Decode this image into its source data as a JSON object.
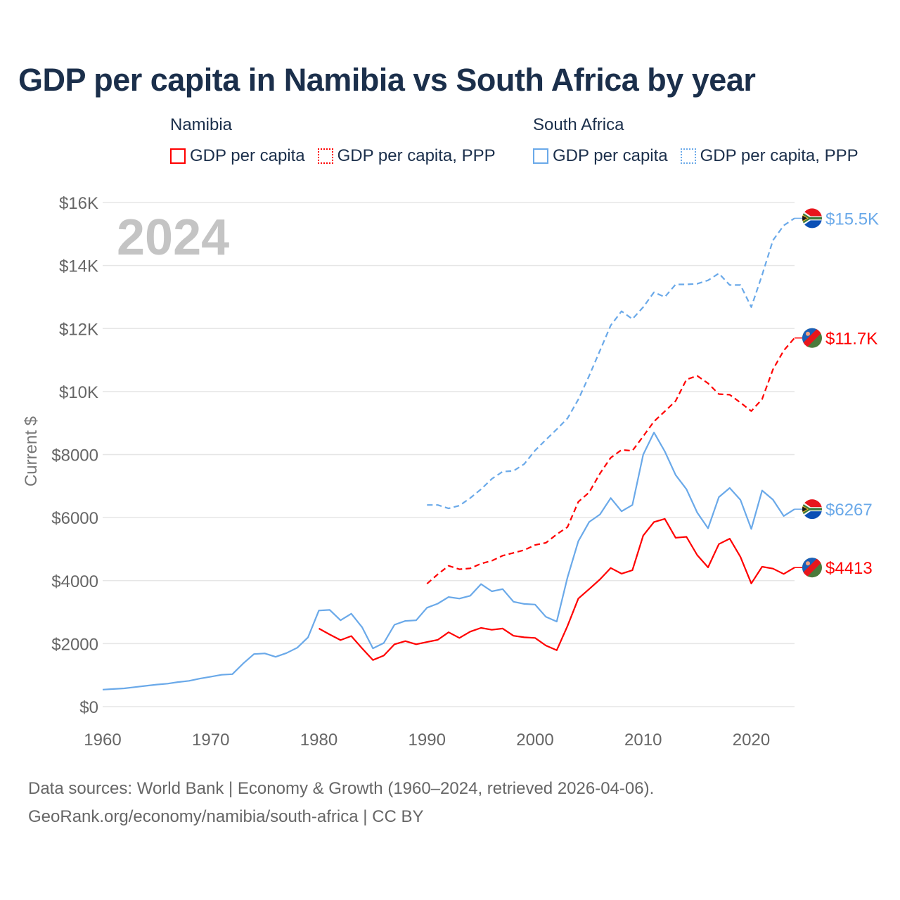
{
  "title": "GDP per capita in Namibia vs South Africa by year",
  "legend": {
    "groups": [
      {
        "country": "Namibia",
        "color": "#ff0000",
        "items": [
          "GDP per capita",
          "GDP per capita, PPP"
        ]
      },
      {
        "country": "South Africa",
        "color": "#6aa9e9",
        "items": [
          "GDP per capita",
          "GDP per capita, PPP"
        ]
      }
    ]
  },
  "year_label": "2024",
  "footer": {
    "line1": "Data sources: World Bank | Economy & Growth (1960–2024, retrieved 2026-04-06).",
    "line2": "GeoRank.org/economy/namibia/south-africa | CC BY"
  },
  "chart_data": {
    "type": "line",
    "title": "GDP per capita in Namibia vs South Africa by year",
    "xlabel": "",
    "ylabel": "Current $",
    "xlim": [
      1960,
      2024
    ],
    "ylim": [
      0,
      16000
    ],
    "x_ticks": [
      1960,
      1970,
      1980,
      1990,
      2000,
      2010,
      2020
    ],
    "x_tick_labels": [
      "1960",
      "1970",
      "1980",
      "1990",
      "2000",
      "2010",
      "2020"
    ],
    "y_ticks": [
      0,
      2000,
      4000,
      6000,
      8000,
      10000,
      12000,
      14000,
      16000
    ],
    "y_tick_labels": [
      "$0",
      "$2000",
      "$4000",
      "$6000",
      "$8000",
      "$10K",
      "$12K",
      "$14K",
      "$16K"
    ],
    "grid": true,
    "series": [
      {
        "name": "South Africa GDP per capita",
        "color": "#6aa9e9",
        "dash": "solid",
        "flag": "south-africa",
        "end_label": "$6267",
        "start": 1960,
        "values": [
          540,
          560,
          580,
          620,
          660,
          700,
          730,
          780,
          820,
          890,
          950,
          1010,
          1030,
          1370,
          1670,
          1690,
          1580,
          1700,
          1870,
          2200,
          3050,
          3070,
          2740,
          2950,
          2520,
          1850,
          2020,
          2600,
          2720,
          2740,
          3140,
          3270,
          3480,
          3430,
          3520,
          3890,
          3660,
          3730,
          3330,
          3260,
          3240,
          2850,
          2700,
          4100,
          5250,
          5860,
          6100,
          6620,
          6200,
          6400,
          8000,
          8700,
          8100,
          7350,
          6900,
          6160,
          5660,
          6650,
          6940,
          6560,
          5640,
          6860,
          6570,
          6050,
          6267
        ]
      },
      {
        "name": "Namibia GDP per capita",
        "color": "#ff0000",
        "dash": "solid",
        "flag": "namibia",
        "end_label": "$4413",
        "start": 1980,
        "values": [
          2480,
          2290,
          2110,
          2240,
          1850,
          1480,
          1620,
          1980,
          2080,
          1980,
          2050,
          2120,
          2360,
          2180,
          2380,
          2500,
          2440,
          2480,
          2250,
          2200,
          2180,
          1940,
          1790,
          2560,
          3430,
          3730,
          4040,
          4400,
          4220,
          4330,
          5430,
          5860,
          5960,
          5360,
          5390,
          4810,
          4420,
          5160,
          5330,
          4750,
          3910,
          4440,
          4380,
          4210,
          4413
        ]
      },
      {
        "name": "Namibia GDP per capita, PPP",
        "color": "#ff0000",
        "dash": "dashed",
        "flag": "namibia",
        "end_label": "$11.7K",
        "start": 1990,
        "values": [
          3900,
          4200,
          4470,
          4360,
          4390,
          4540,
          4630,
          4790,
          4880,
          4970,
          5130,
          5200,
          5470,
          5700,
          6500,
          6800,
          7400,
          7900,
          8150,
          8120,
          8580,
          9050,
          9370,
          9700,
          10380,
          10500,
          10260,
          9920,
          9900,
          9650,
          9380,
          9760,
          10700,
          11300,
          11700
        ]
      },
      {
        "name": "South Africa GDP per capita, PPP",
        "color": "#6aa9e9",
        "dash": "dashed",
        "flag": "south-africa",
        "end_label": "$15.5K",
        "start": 1990,
        "values": [
          6400,
          6400,
          6290,
          6380,
          6620,
          6900,
          7230,
          7460,
          7480,
          7700,
          8130,
          8470,
          8800,
          9150,
          9750,
          10500,
          11300,
          12100,
          12550,
          12300,
          12680,
          13150,
          13000,
          13400,
          13400,
          13420,
          13530,
          13750,
          13380,
          13380,
          12680,
          13700,
          14800,
          15270,
          15500
        ]
      }
    ]
  }
}
